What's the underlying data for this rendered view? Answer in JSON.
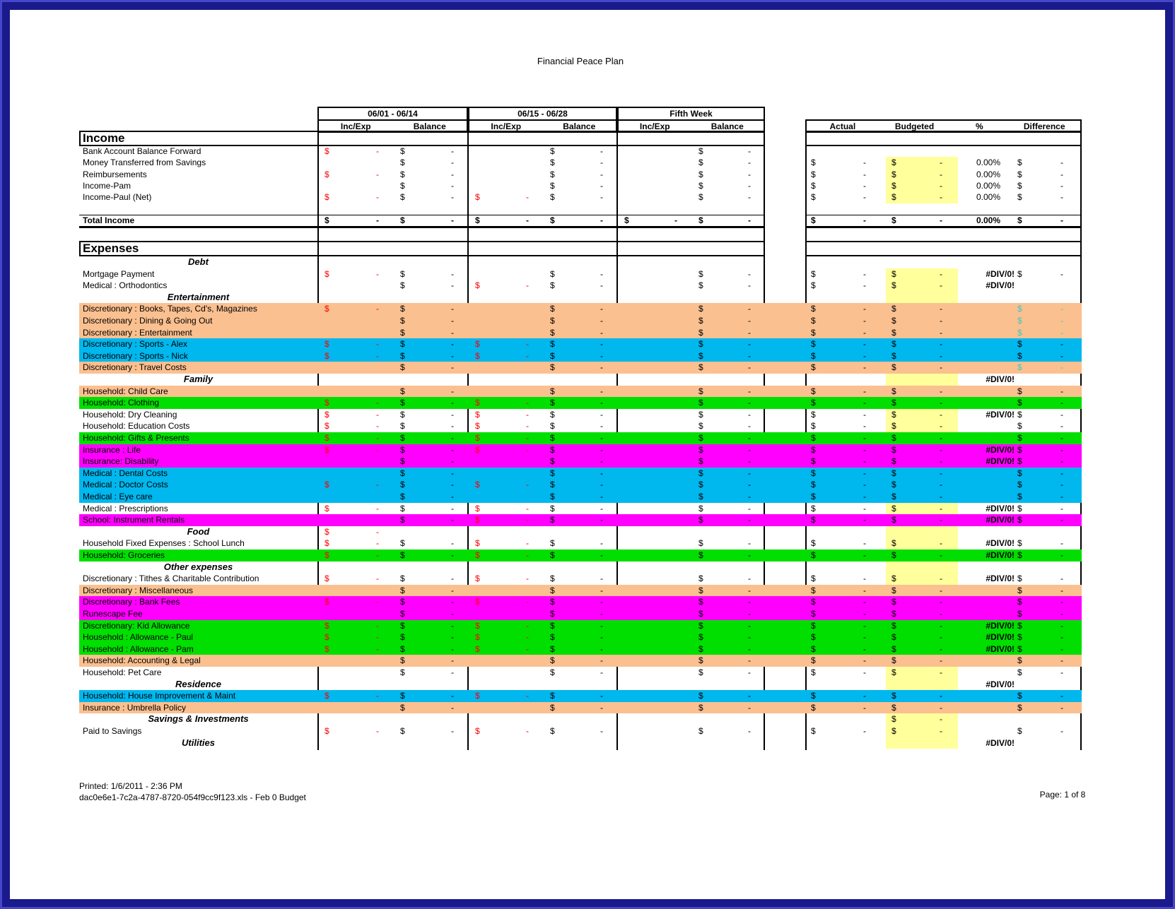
{
  "title": "Financial Peace Plan",
  "colors": {
    "frame_navy": "#1a1a8c",
    "frame_outer_blue": "#4646c8",
    "row_orange": "#FAC090",
    "row_cyan": "#00B7EE",
    "row_green": "#00DF00",
    "row_magenta": "#FF00FF",
    "budget_yellow": "#FFFF9B",
    "negative_red": "#FF0000",
    "teal_value": "#3EC8C0"
  },
  "glyphs": {
    "dollar": "$",
    "dash": "-",
    "div_zero": "#DIV/0!",
    "pct_zero": "0.00%"
  },
  "table": {
    "periods": [
      "06/01 - 06/14",
      "06/15 - 06/28",
      "Fifth Week"
    ],
    "subheaders": {
      "inc_exp": "Inc/Exp",
      "balance": "Balance"
    },
    "summary_headers": [
      "Actual",
      "Budgeted",
      "%",
      "Difference"
    ],
    "sections": {
      "income": "Income",
      "expenses": "Expenses"
    },
    "income_rows": [
      {
        "label": "Bank Account Balance Forward",
        "type": "item",
        "bg": "white",
        "cells": {
          "p1i": "r",
          "p1b": "k",
          "p2b": "k",
          "p3b": "k"
        }
      },
      {
        "label": "Money Transferred from Savings",
        "type": "item",
        "bg": "white",
        "cells": {
          "p1b": "k",
          "p2b": "k",
          "p3b": "k",
          "act": "k",
          "bud": "y",
          "pct": "pct0",
          "diff": "k"
        }
      },
      {
        "label": "Reimbursements",
        "type": "item",
        "bg": "white",
        "cells": {
          "p1i": "r",
          "p1b": "k",
          "p2b": "k",
          "p3b": "k",
          "act": "k",
          "bud": "y",
          "pct": "pct0",
          "diff": "k"
        }
      },
      {
        "label": "Income-Pam",
        "type": "item",
        "bg": "white",
        "cells": {
          "p1b": "k",
          "p2b": "k",
          "p3b": "k",
          "act": "k",
          "bud": "y",
          "pct": "pct0",
          "diff": "k"
        }
      },
      {
        "label": "Income-Paul (Net)",
        "type": "item",
        "bg": "white",
        "cells": {
          "p1i": "r",
          "p1b": "k",
          "p2i": "r",
          "p2b": "k",
          "p3b": "k",
          "act": "k",
          "bud": "y",
          "pct": "pct0",
          "diff": "k"
        }
      },
      {
        "label": "",
        "type": "blank",
        "bg": "white",
        "cells": {}
      },
      {
        "label": "Total Income",
        "type": "total",
        "bg": "white",
        "cells": {
          "p1i": "b",
          "p1b": "b",
          "p2i": "b",
          "p2b": "b",
          "p3i": "b",
          "p3b": "b",
          "act": "b",
          "bud": "b",
          "pct": "pct0b",
          "diff": "b"
        }
      }
    ],
    "expense_rows": [
      {
        "label": "Debt",
        "type": "group",
        "bg": "white",
        "cells": {}
      },
      {
        "label": "Mortgage Payment",
        "type": "item",
        "bg": "white",
        "cells": {
          "p1i": "r",
          "p1b": "k",
          "p2b": "k",
          "p3b": "k",
          "act": "k",
          "bud": "y",
          "pct": "div0",
          "diff": "k"
        }
      },
      {
        "label": "Medical : Orthodontics",
        "type": "item",
        "bg": "white",
        "cells": {
          "p1b": "k",
          "p2i": "r",
          "p2b": "k",
          "p3b": "k",
          "act": "k",
          "bud": "y",
          "pct": "div0"
        }
      },
      {
        "label": "Entertainment",
        "type": "group",
        "bg": "white",
        "cells": {
          "bud": "ybl"
        }
      },
      {
        "label": "Discretionary : Books, Tapes, Cd's, Magazines",
        "type": "item",
        "bg": "orange",
        "cells": {
          "p1i": "r",
          "p1b": "k",
          "p2b": "k",
          "p3b": "k",
          "act": "k",
          "bud": "k",
          "diff": "t"
        }
      },
      {
        "label": "Discretionary : Dining & Going Out",
        "type": "item",
        "bg": "orange",
        "cells": {
          "p1b": "k",
          "p2b": "k",
          "p3b": "k",
          "act": "k",
          "bud": "k",
          "diff": "t"
        }
      },
      {
        "label": "Discretionary : Entertainment",
        "type": "item",
        "bg": "orange",
        "cells": {
          "p1b": "k",
          "p2b": "k",
          "p3b": "k",
          "act": "k",
          "bud": "k",
          "diff": "t"
        }
      },
      {
        "label": "Discretionary : Sports - Alex",
        "type": "item",
        "bg": "cyan",
        "cells": {
          "p1i": "r",
          "p1b": "k",
          "p2i": "r",
          "p2b": "k",
          "p3b": "k",
          "act": "k",
          "bud": "k",
          "diff": "k"
        }
      },
      {
        "label": "Discretionary : Sports - Nick",
        "type": "item",
        "bg": "cyan",
        "cells": {
          "p1i": "r",
          "p1b": "k",
          "p2i": "r",
          "p2b": "k",
          "p3b": "k",
          "act": "k",
          "bud": "k",
          "diff": "k"
        }
      },
      {
        "label": "Discretionary : Travel Costs",
        "type": "item",
        "bg": "orange",
        "cells": {
          "p1b": "k",
          "p2b": "k",
          "p3b": "k",
          "act": "k",
          "bud": "k",
          "diff": "t"
        }
      },
      {
        "label": "Family",
        "type": "group",
        "bg": "white",
        "cells": {
          "bud": "ybl",
          "pct": "div0"
        }
      },
      {
        "label": "Household: Child Care",
        "type": "item",
        "bg": "orange",
        "cells": {
          "p1b": "k",
          "p2b": "k",
          "p3b": "k",
          "act": "k",
          "bud": "k",
          "diff": "k"
        }
      },
      {
        "label": "Household: Clothing",
        "type": "item",
        "bg": "green",
        "cells": {
          "p1i": "r",
          "p1b": "k",
          "p2i": "r",
          "p2b": "k",
          "p3b": "k",
          "act": "k",
          "bud": "k",
          "diff": "k"
        }
      },
      {
        "label": "Household: Dry Cleaning",
        "type": "item",
        "bg": "white",
        "cells": {
          "p1i": "r",
          "p1b": "k",
          "p2i": "r",
          "p2b": "k",
          "p3b": "k",
          "act": "k",
          "bud": "y",
          "pct": "div0",
          "diff": "k"
        }
      },
      {
        "label": "Household: Education Costs",
        "type": "item",
        "bg": "white",
        "cells": {
          "p1i": "r",
          "p1b": "k",
          "p2i": "r",
          "p2b": "k",
          "p3b": "k",
          "act": "k",
          "bud": "y",
          "diff": "k"
        }
      },
      {
        "label": "Household: Gifts & Presents",
        "type": "item",
        "bg": "green",
        "cells": {
          "p1i": "r",
          "p1b": "k",
          "p2i": "r",
          "p2b": "k",
          "p3b": "k",
          "act": "k",
          "bud": "k",
          "diff": "k"
        }
      },
      {
        "label": "Insurance : Life",
        "type": "item",
        "bg": "magenta",
        "cells": {
          "p1i": "r",
          "p1b": "k",
          "p2i": "r",
          "p2b": "k",
          "p3b": "k",
          "act": "k",
          "bud": "k",
          "pct": "div0",
          "diff": "k"
        }
      },
      {
        "label": "Insurance: Disability",
        "type": "item",
        "bg": "magenta",
        "cells": {
          "p1b": "k",
          "p2b": "k",
          "p3b": "k",
          "act": "k",
          "bud": "k",
          "pct": "div0",
          "diff": "k"
        }
      },
      {
        "label": "Medical : Dental Costs",
        "type": "item",
        "bg": "cyan",
        "cells": {
          "p1b": "k",
          "p2b": "k",
          "p3b": "k",
          "act": "k",
          "bud": "k",
          "diff": "k"
        }
      },
      {
        "label": "Medical : Doctor Costs",
        "type": "item",
        "bg": "cyan",
        "cells": {
          "p1i": "r",
          "p1b": "k",
          "p2i": "r",
          "p2b": "k",
          "p3b": "k",
          "act": "k",
          "bud": "k",
          "diff": "k"
        }
      },
      {
        "label": "Medical : Eye care",
        "type": "item",
        "bg": "cyan",
        "cells": {
          "p1b": "k",
          "p2b": "k",
          "p3b": "k",
          "act": "k",
          "bud": "k",
          "diff": "k"
        }
      },
      {
        "label": "Medical : Prescriptions",
        "type": "item",
        "bg": "white",
        "cells": {
          "p1i": "r",
          "p1b": "k",
          "p2i": "r",
          "p2b": "k",
          "p3b": "k",
          "act": "k",
          "bud": "y",
          "pct": "div0",
          "diff": "k"
        }
      },
      {
        "label": "School: Instrument Rentals",
        "type": "item",
        "bg": "magenta",
        "cells": {
          "p1b": "k",
          "p2i": "r",
          "p2b": "k",
          "p3b": "k",
          "act": "k",
          "bud": "k",
          "pct": "div0",
          "diff": "k"
        }
      },
      {
        "label": "Food",
        "type": "group",
        "bg": "white",
        "cells": {
          "p1i": "r",
          "bud": "ybl"
        }
      },
      {
        "label": "Household Fixed Expenses : School Lunch",
        "type": "item",
        "bg": "white",
        "cells": {
          "p1i": "r",
          "p1b": "k",
          "p2i": "r",
          "p2b": "k",
          "p3b": "k",
          "act": "k",
          "bud": "y",
          "pct": "div0",
          "diff": "k"
        }
      },
      {
        "label": "Household: Groceries",
        "type": "item",
        "bg": "green",
        "cells": {
          "p1i": "r",
          "p1b": "k",
          "p2i": "r",
          "p2b": "k",
          "p3b": "k",
          "act": "k",
          "bud": "k",
          "pct": "div0",
          "diff": "k"
        }
      },
      {
        "label": "Other expenses",
        "type": "group",
        "bg": "white",
        "cells": {
          "bud": "ybl"
        }
      },
      {
        "label": "Discretionary : Tithes & Charitable Contribution",
        "type": "item",
        "bg": "white",
        "cells": {
          "p1i": "r",
          "p1b": "k",
          "p2i": "r",
          "p2b": "k",
          "p3b": "k",
          "act": "k",
          "bud": "y",
          "pct": "div0",
          "diff": "k"
        }
      },
      {
        "label": "Discretionary : Miscellaneous",
        "type": "item",
        "bg": "orange",
        "cells": {
          "p1b": "k",
          "p2b": "k",
          "p3b": "k",
          "act": "k",
          "bud": "k",
          "diff": "k"
        }
      },
      {
        "label": "Discretionary : Bank Fees",
        "type": "item",
        "bg": "magenta",
        "cells": {
          "p1i": "r",
          "p1b": "k",
          "p2i": "r",
          "p2b": "k",
          "p3b": "k",
          "act": "k",
          "bud": "k",
          "diff": "k"
        }
      },
      {
        "label": "Runescape Fee",
        "type": "item",
        "bg": "magenta",
        "cells": {
          "p1b": "k",
          "p2b": "k",
          "p3b": "k",
          "act": "k",
          "bud": "k",
          "diff": "k"
        }
      },
      {
        "label": "Discretionary: Kid Allowance",
        "type": "item",
        "bg": "green",
        "cells": {
          "p1i": "r",
          "p1b": "k",
          "p2i": "r",
          "p2b": "k",
          "p3b": "k",
          "act": "k",
          "bud": "k",
          "pct": "div0",
          "diff": "k"
        }
      },
      {
        "label": "Household  : Allowance - Paul",
        "type": "item",
        "bg": "green",
        "cells": {
          "p1i": "r",
          "p1b": "k",
          "p2i": "r",
          "p2b": "k",
          "p3b": "k",
          "act": "k",
          "bud": "k",
          "pct": "div0",
          "diff": "k"
        }
      },
      {
        "label": "Household  : Allowance - Pam",
        "type": "item",
        "bg": "green",
        "cells": {
          "p1i": "r",
          "p1b": "k",
          "p2i": "r",
          "p2b": "k",
          "p3b": "k",
          "act": "k",
          "bud": "k",
          "pct": "div0",
          "diff": "k"
        }
      },
      {
        "label": "Household: Accounting & Legal",
        "type": "item",
        "bg": "orange",
        "cells": {
          "p1b": "k",
          "p2b": "k",
          "p3b": "k",
          "act": "k",
          "bud": "k",
          "diff": "k"
        }
      },
      {
        "label": "Household: Pet Care",
        "type": "item",
        "bg": "white",
        "cells": {
          "p1b": "k",
          "p2b": "k",
          "p3b": "k",
          "act": "k",
          "bud": "y",
          "diff": "k"
        }
      },
      {
        "label": "Residence",
        "type": "group",
        "bg": "white",
        "cells": {
          "bud": "ybl",
          "pct": "div0"
        }
      },
      {
        "label": "Household: House Improvement & Maint",
        "type": "item",
        "bg": "cyan",
        "cells": {
          "p1i": "r",
          "p1b": "k",
          "p2i": "r",
          "p2b": "k",
          "p3b": "k",
          "act": "k",
          "bud": "k",
          "diff": "k"
        }
      },
      {
        "label": "Insurance : Umbrella Policy",
        "type": "item",
        "bg": "orange",
        "cells": {
          "p1b": "k",
          "p2b": "k",
          "p3b": "k",
          "act": "k",
          "bud": "k",
          "diff": "k"
        }
      },
      {
        "label": "Savings & Investments",
        "type": "group",
        "bg": "white",
        "cells": {
          "bud": "y"
        }
      },
      {
        "label": "Paid to Savings",
        "type": "item",
        "bg": "white",
        "cells": {
          "p1i": "r",
          "p1b": "k",
          "p2i": "r",
          "p2b": "k",
          "p3b": "k",
          "act": "k",
          "bud": "y",
          "diff": "k"
        }
      },
      {
        "label": "Utilities",
        "type": "group",
        "bg": "white",
        "cells": {
          "bud": "ybl",
          "pct": "div0"
        }
      }
    ]
  },
  "footer": {
    "printed": "Printed: 1/6/2011 - 2:36 PM",
    "file": "dac0e6e1-7c2a-4787-8720-054f9cc9f123.xls - Feb 0 Budget",
    "page": "Page: 1 of 8"
  }
}
